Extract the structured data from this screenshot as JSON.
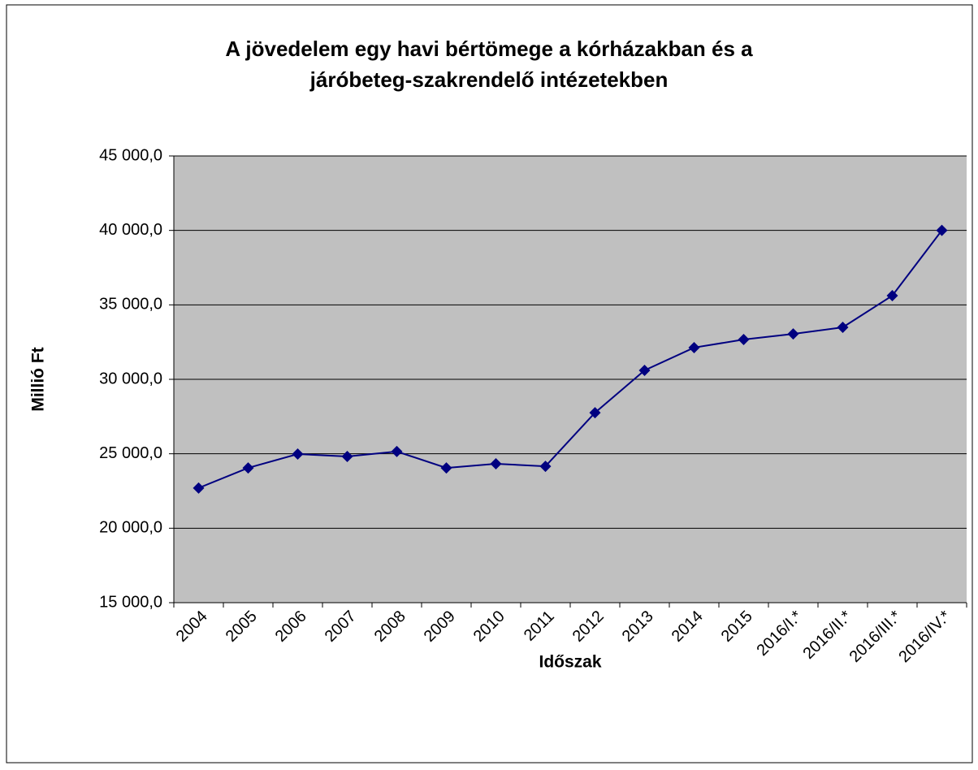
{
  "chart_data": {
    "type": "line",
    "title": [
      "A jövedelem egy havi bértömege a kórházakban és a",
      "járóbeteg-szakrendelő intézetekben"
    ],
    "x_label": "Időszak",
    "y_label": "Millió Ft",
    "categories": [
      "2004",
      "2005",
      "2006",
      "2007",
      "2008",
      "2009",
      "2010",
      "2011",
      "2012",
      "2013",
      "2014",
      "2015",
      "2016/I.*",
      "2016/II.*",
      "2016/III.*",
      "2016/IV.*"
    ],
    "values": [
      22700,
      24050,
      24980,
      24820,
      25150,
      24050,
      24330,
      24160,
      27760,
      30600,
      32130,
      32670,
      33050,
      33490,
      35620,
      40000
    ],
    "color": "#000080",
    "ylim": [
      15000,
      45000
    ],
    "yticks": [
      {
        "value": 15000,
        "label": "15 000,0"
      },
      {
        "value": 20000,
        "label": "20 000,0"
      },
      {
        "value": 25000,
        "label": "25 000,0"
      },
      {
        "value": 30000,
        "label": "30 000,0"
      },
      {
        "value": 35000,
        "label": "35 000,0"
      },
      {
        "value": 40000,
        "label": "40 000,0"
      },
      {
        "value": 45000,
        "label": "45 000,0"
      }
    ],
    "grid": true
  }
}
